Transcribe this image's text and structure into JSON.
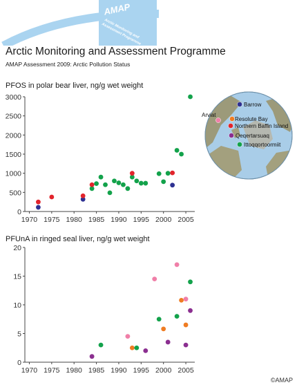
{
  "header": {
    "logo_acronym": "AMAP",
    "logo_line1": "Arctic Monitoring and",
    "logo_line2": "Assessment Programme",
    "title": "Arctic Monitoring and Assessment Programme",
    "subtitle": "AMAP Assessment 2009: Arctic Pollution Status"
  },
  "colors": {
    "red": "#e2242c",
    "green": "#13a24b",
    "navy": "#2e3192",
    "purple": "#8b2f90",
    "pink": "#f07fa8",
    "orange": "#ef7c23",
    "arc": "#aad4f0"
  },
  "map": {
    "labels": [
      "Barrow",
      "Arviat",
      "Resolute Bay",
      "Northern Baffin Island",
      "Qeqertarsuaq",
      "Ittoqqortoormiit"
    ]
  },
  "chart_data": [
    {
      "type": "scatter",
      "title": "PFOS in polar bear liver, ng/g wet weight",
      "xlabel": "",
      "ylabel": "",
      "xlim": [
        1969,
        2007
      ],
      "ylim": [
        0,
        3000
      ],
      "xticks": [
        1970,
        1975,
        1980,
        1985,
        1990,
        1995,
        2000,
        2005
      ],
      "yticks": [
        0,
        500,
        1000,
        1500,
        2000,
        2500,
        3000
      ],
      "grid": false,
      "points": [
        {
          "x": 1972,
          "y": 110,
          "color": "navy"
        },
        {
          "x": 1972,
          "y": 250,
          "color": "red"
        },
        {
          "x": 1975,
          "y": 380,
          "color": "red"
        },
        {
          "x": 1982,
          "y": 320,
          "color": "navy"
        },
        {
          "x": 1982,
          "y": 410,
          "color": "red"
        },
        {
          "x": 1984,
          "y": 600,
          "color": "green"
        },
        {
          "x": 1984,
          "y": 700,
          "color": "red"
        },
        {
          "x": 1985,
          "y": 730,
          "color": "green"
        },
        {
          "x": 1986,
          "y": 900,
          "color": "green"
        },
        {
          "x": 1987,
          "y": 700,
          "color": "green"
        },
        {
          "x": 1988,
          "y": 490,
          "color": "green"
        },
        {
          "x": 1989,
          "y": 800,
          "color": "green"
        },
        {
          "x": 1990,
          "y": 750,
          "color": "green"
        },
        {
          "x": 1991,
          "y": 700,
          "color": "green"
        },
        {
          "x": 1992,
          "y": 600,
          "color": "green"
        },
        {
          "x": 1993,
          "y": 900,
          "color": "green"
        },
        {
          "x": 1993,
          "y": 1000,
          "color": "red"
        },
        {
          "x": 1994,
          "y": 800,
          "color": "green"
        },
        {
          "x": 1995,
          "y": 740,
          "color": "green"
        },
        {
          "x": 1996,
          "y": 740,
          "color": "green"
        },
        {
          "x": 1999,
          "y": 990,
          "color": "green"
        },
        {
          "x": 2000,
          "y": 780,
          "color": "green"
        },
        {
          "x": 2001,
          "y": 1000,
          "color": "green"
        },
        {
          "x": 2002,
          "y": 1010,
          "color": "red"
        },
        {
          "x": 2002,
          "y": 690,
          "color": "navy"
        },
        {
          "x": 2003,
          "y": 1600,
          "color": "green"
        },
        {
          "x": 2004,
          "y": 1500,
          "color": "green"
        },
        {
          "x": 2006,
          "y": 3000,
          "color": "green"
        }
      ]
    },
    {
      "type": "scatter",
      "title": "PFUnA in ringed seal liver, ng/g wet weight",
      "xlabel": "",
      "ylabel": "",
      "xlim": [
        1969,
        2007
      ],
      "ylim": [
        0,
        20
      ],
      "xticks": [
        1970,
        1975,
        1980,
        1985,
        1990,
        1995,
        2000,
        2005
      ],
      "yticks": [
        0,
        5,
        10,
        15,
        20
      ],
      "grid": false,
      "points": [
        {
          "x": 1984,
          "y": 1.0,
          "color": "purple"
        },
        {
          "x": 1986,
          "y": 3.0,
          "color": "green"
        },
        {
          "x": 1992,
          "y": 4.5,
          "color": "pink"
        },
        {
          "x": 1993,
          "y": 2.5,
          "color": "orange"
        },
        {
          "x": 1994,
          "y": 2.5,
          "color": "green"
        },
        {
          "x": 1996,
          "y": 2.0,
          "color": "purple"
        },
        {
          "x": 1998,
          "y": 14.5,
          "color": "pink"
        },
        {
          "x": 1999,
          "y": 7.5,
          "color": "green"
        },
        {
          "x": 2000,
          "y": 5.8,
          "color": "orange"
        },
        {
          "x": 2001,
          "y": 3.5,
          "color": "purple"
        },
        {
          "x": 2003,
          "y": 17.0,
          "color": "pink"
        },
        {
          "x": 2003,
          "y": 8.0,
          "color": "green"
        },
        {
          "x": 2004,
          "y": 10.8,
          "color": "orange"
        },
        {
          "x": 2005,
          "y": 11.0,
          "color": "pink"
        },
        {
          "x": 2005,
          "y": 6.5,
          "color": "orange"
        },
        {
          "x": 2005,
          "y": 3.0,
          "color": "purple"
        },
        {
          "x": 2006,
          "y": 14.0,
          "color": "green"
        },
        {
          "x": 2006,
          "y": 9.0,
          "color": "purple"
        }
      ]
    }
  ],
  "copyright": "©AMAP"
}
